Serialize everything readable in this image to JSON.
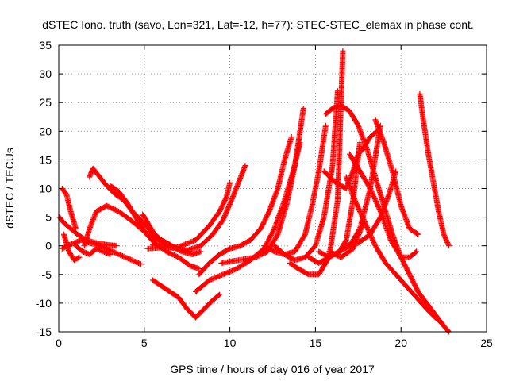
{
  "chart_data": {
    "type": "scatter",
    "title": "dSTEC Iono. truth (savo, Lon=321, Lat=-12, h=77): STEC-STEC_elemax in phase cont.",
    "xlabel": "GPS time / hours of day 016 of year 2017",
    "ylabel": "dSTEC  / TECUs",
    "xlim": [
      0,
      25
    ],
    "ylim": [
      -15,
      35
    ],
    "x_ticks": [
      0,
      5,
      10,
      15,
      20,
      25
    ],
    "y_ticks": [
      -15,
      -10,
      -5,
      0,
      5,
      10,
      15,
      20,
      25,
      30,
      35
    ],
    "grid": true,
    "marker": "+",
    "color": "#ff0000",
    "series": [
      {
        "x": [
          0.05,
          0.3,
          0.7,
          1.1,
          1.6,
          2.2,
          2.8,
          3.4
        ],
        "y": [
          5,
          4,
          3,
          2,
          1,
          0.5,
          0.2,
          0
        ]
      },
      {
        "x": [
          0.2,
          0.5,
          0.9,
          1.3,
          1.8,
          2.4,
          3.0,
          3.6,
          4.2,
          4.8
        ],
        "y": [
          -0.5,
          0,
          0.5,
          1,
          0.5,
          0,
          -0.8,
          -1.6,
          -2.4,
          -3.2
        ]
      },
      {
        "x": [
          0.2,
          0.45,
          0.7,
          1.0
        ],
        "y": [
          10,
          9,
          6,
          3
        ]
      },
      {
        "x": [
          1.5,
          1.8,
          2.2,
          2.8,
          3.5,
          4.2,
          5.0,
          5.8,
          6.5,
          7.2,
          7.7
        ],
        "y": [
          0,
          3,
          6,
          7,
          6,
          4.5,
          2.5,
          1,
          0,
          -0.8,
          -1
        ]
      },
      {
        "x": [
          1.8,
          2.0,
          2.4,
          2.8,
          3.3,
          3.8,
          4.3,
          4.8,
          5.4,
          6.0,
          6.6,
          7.2,
          7.8,
          8.3
        ],
        "y": [
          12,
          13.5,
          12,
          10.5,
          9,
          8,
          6,
          4.5,
          2.5,
          1,
          0,
          -1,
          -1.5,
          -1
        ]
      },
      {
        "x": [
          3.0,
          3.5,
          4.0,
          4.5,
          5.0,
          5.6,
          6.3,
          7.0,
          7.7,
          8.2
        ],
        "y": [
          10.5,
          9.5,
          7.5,
          5,
          2.5,
          0.5,
          -1,
          -2,
          -3.5,
          -4
        ]
      },
      {
        "x": [
          0.3,
          0.6,
          0.9,
          1.2
        ],
        "y": [
          2,
          -1,
          -2.5,
          -2
        ]
      },
      {
        "x": [
          1.0,
          1.4,
          1.8,
          2.2,
          2.6,
          3.0
        ],
        "y": [
          0,
          -1,
          -1.5,
          -0.5,
          -1,
          -1.5
        ]
      },
      {
        "x": [
          4.9,
          5.2,
          5.6,
          6.0,
          6.5
        ],
        "y": [
          5.5,
          4,
          2,
          1,
          0.2
        ]
      },
      {
        "x": [
          5.5,
          6.0,
          6.5,
          7.0,
          7.5,
          8.0,
          8.5,
          9.0,
          9.4
        ],
        "y": [
          -6,
          -7,
          -8,
          -9,
          -11,
          -12.5,
          -11,
          -9.5,
          -8.5
        ]
      },
      {
        "x": [
          5.2,
          6.0,
          7.0,
          8.0,
          8.8,
          9.4,
          9.8,
          10.0
        ],
        "y": [
          -0.5,
          -0.3,
          -0.2,
          1,
          3.5,
          6,
          8.5,
          11
        ]
      },
      {
        "x": [
          5.5,
          6.5,
          7.5,
          8.3,
          9.0,
          9.6,
          10.1,
          10.5,
          10.9
        ],
        "y": [
          0.2,
          -0.3,
          -0.8,
          0,
          2,
          4.5,
          8,
          11,
          14
        ]
      },
      {
        "x": [
          8.2,
          8.8,
          9.4,
          10.0,
          10.6,
          11.2,
          11.8,
          12.3,
          12.8,
          13.2,
          13.6
        ],
        "y": [
          -5,
          -3,
          -1.5,
          -0.5,
          0,
          1,
          3,
          6,
          10,
          15,
          19
        ]
      },
      {
        "x": [
          8.0,
          8.8,
          9.6,
          10.4,
          11.2,
          12.0,
          12.6,
          13.2,
          13.7,
          14.1
        ],
        "y": [
          -8,
          -6,
          -5,
          -4,
          -2.5,
          -0.5,
          3,
          8,
          13,
          18
        ]
      },
      {
        "x": [
          9.5,
          10.5,
          11.5,
          12.2,
          12.8,
          13.3,
          13.8,
          14.3
        ],
        "y": [
          -3,
          -2.5,
          -2,
          -1,
          2,
          7,
          14,
          24
        ]
      },
      {
        "x": [
          12.0,
          12.6,
          13.2,
          13.8,
          14.4,
          14.8,
          15.2,
          15.6
        ],
        "y": [
          0,
          -1,
          -1.5,
          -1,
          2,
          7,
          13,
          21
        ]
      },
      {
        "x": [
          12.6,
          13.2,
          13.8,
          14.4,
          15.0,
          15.5,
          16.0,
          16.3
        ],
        "y": [
          0,
          -1.5,
          -2.5,
          -2,
          0,
          5,
          14,
          27
        ]
      },
      {
        "x": [
          13.5,
          14.0,
          14.6,
          15.2,
          15.8,
          16.3,
          16.6
        ],
        "y": [
          -3,
          -4,
          -5,
          -5,
          -2,
          8,
          34
        ]
      },
      {
        "x": [
          14.6,
          15.2,
          15.8,
          16.4,
          16.8,
          17.2,
          17.6
        ],
        "y": [
          -2,
          -3,
          -2,
          -1,
          1,
          8,
          18
        ]
      },
      {
        "x": [
          15.2,
          15.8,
          16.4,
          17.0,
          17.6,
          18.2,
          18.8
        ],
        "y": [
          -1,
          -2,
          -1,
          0,
          3,
          10,
          21
        ]
      },
      {
        "x": [
          15.5,
          16.2,
          16.8,
          17.2,
          17.5,
          17.8,
          18.2,
          18.6
        ],
        "y": [
          13,
          11,
          10,
          13,
          16,
          17,
          19,
          20
        ]
      },
      {
        "x": [
          15.6,
          16.0,
          16.5,
          17.0,
          17.5,
          18.0,
          18.5,
          19.0,
          19.5,
          20.0,
          20.5,
          21.0,
          21.5,
          22.0,
          22.5,
          22.8
        ],
        "y": [
          23,
          24,
          24.5,
          23.5,
          21,
          17,
          12,
          7,
          2,
          -2,
          -5,
          -8,
          -10,
          -12,
          -14,
          -15
        ]
      },
      {
        "x": [
          16.8,
          17.3,
          17.9,
          18.5,
          19.1,
          19.7,
          20.3,
          20.9,
          21.5,
          22.0,
          22.4
        ],
        "y": [
          12,
          8,
          4,
          0,
          -3,
          -5,
          -7,
          -9,
          -11,
          -12.5,
          -13.5
        ]
      },
      {
        "x": [
          17.0,
          17.6,
          18.2,
          18.8,
          19.4,
          20.0,
          20.5,
          20.9
        ],
        "y": [
          16,
          13,
          10,
          6,
          1,
          -2,
          -2,
          -1
        ]
      },
      {
        "x": [
          16.8,
          17.5,
          18.2,
          18.8,
          19.3,
          19.7
        ],
        "y": [
          0,
          0.5,
          2,
          5,
          9,
          13
        ]
      },
      {
        "x": [
          18.5,
          19.0,
          19.5,
          20.0,
          20.5,
          21.0
        ],
        "y": [
          22,
          18,
          13,
          7,
          3,
          2
        ]
      },
      {
        "x": [
          21.1,
          21.3,
          21.6,
          21.9,
          22.2,
          22.5,
          22.8
        ],
        "y": [
          26.5,
          22,
          16,
          11,
          6,
          2,
          0
        ]
      },
      {
        "x": [
          15.8,
          16.5,
          17.2,
          17.8
        ],
        "y": [
          -1,
          -2,
          -0.5,
          4
        ]
      }
    ]
  }
}
